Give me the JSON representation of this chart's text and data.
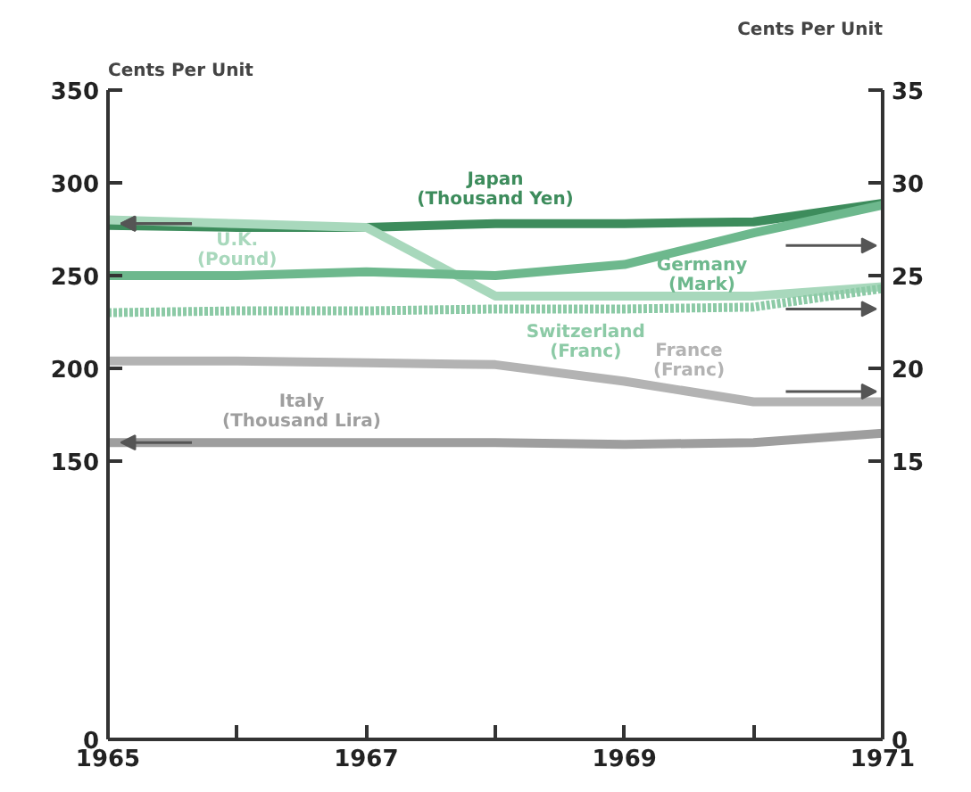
{
  "chart_data": {
    "type": "line",
    "x": [
      1965,
      1966,
      1967,
      1968,
      1969,
      1970,
      1971
    ],
    "xlim": [
      1965,
      1971
    ],
    "xticks": [
      1965,
      {
        "value": 1966,
        "label": null
      },
      1967,
      {
        "value": 1968,
        "label": null
      },
      1969,
      {
        "value": 1970,
        "label": null
      },
      1971
    ],
    "ylim": [
      0,
      350
    ],
    "yticks": [
      0,
      150,
      200,
      250,
      300,
      350
    ],
    "y2lim": [
      0,
      35
    ],
    "y2ticks": [
      0,
      15,
      20,
      25,
      30,
      35
    ],
    "ylabel": "Cents Per Unit",
    "y2label": "Cents Per Unit",
    "grid": false,
    "marker": "none",
    "series": [
      {
        "name": "Japan\n(Thousand Yen)",
        "color": "#3d8c5c",
        "values": [
          277,
          276,
          276,
          278,
          278,
          279,
          289
        ]
      },
      {
        "name": "U.K.\n(Pound)",
        "color": "#a8d8bc",
        "values": [
          280,
          278,
          276,
          239,
          239,
          239,
          244
        ]
      },
      {
        "name": "Germany\n(Mark)",
        "color": "#6db88d",
        "axis": "y2",
        "values": [
          25.0,
          25.0,
          25.2,
          25.0,
          25.6,
          27.3,
          28.8
        ]
      },
      {
        "name": "Switzerland\n(Franc)",
        "color": "#8ccaa6",
        "axis": "y2",
        "line_style": "dotted",
        "values": [
          23.0,
          23.1,
          23.1,
          23.2,
          23.2,
          23.3,
          24.3
        ]
      },
      {
        "name": "France\n(Franc)",
        "color": "#b3b3b3",
        "axis": "y2",
        "values": [
          20.4,
          20.4,
          20.3,
          20.2,
          19.3,
          18.2,
          18.2
        ]
      },
      {
        "name": "Italy\n(Thousand Lira)",
        "color": "#9e9e9e",
        "values": [
          160,
          160,
          160,
          160,
          159,
          160,
          165
        ]
      }
    ]
  }
}
